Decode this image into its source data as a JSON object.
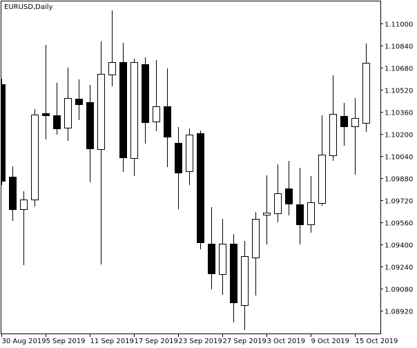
{
  "window": {
    "title": "EURUSD,Daily"
  },
  "colors": {
    "background": "#ffffff",
    "bull_body": "#ffffff",
    "bear_body": "#000000",
    "outline": "#000000"
  },
  "chart_data": {
    "type": "candlestick",
    "title": "EURUSD,Daily",
    "xlabel": "",
    "ylabel": "",
    "ylim": [
      1.08755,
      1.11155
    ],
    "grid": false,
    "y_axis_position": "right",
    "y_ticks": [
      "1.11000",
      "1.10840",
      "1.10680",
      "1.10520",
      "1.10360",
      "1.10200",
      "1.10040",
      "1.09880",
      "1.09720",
      "1.09560",
      "1.09400",
      "1.09240",
      "1.09080",
      "1.08920"
    ],
    "x_tick_labels": [
      {
        "date": "30 Aug 2019",
        "label": "30 Aug 2019"
      },
      {
        "date": "5 Sep 2019",
        "label": "5 Sep 2019"
      },
      {
        "date": "11 Sep 2019",
        "label": "11 Sep 2019"
      },
      {
        "date": "17 Sep 2019",
        "label": "17 Sep 2019"
      },
      {
        "date": "23 Sep 2019",
        "label": "23 Sep 2019"
      },
      {
        "date": "27 Sep 2019",
        "label": "27 Sep 2019"
      },
      {
        "date": "3 Oct 2019",
        "label": "3 Oct 2019"
      },
      {
        "date": "9 Oct 2019",
        "label": "9 Oct 2019"
      },
      {
        "date": "15 Oct 2019",
        "label": "15 Oct 2019"
      }
    ],
    "candles": [
      {
        "date": "30 Aug 2019",
        "open": 1.1056,
        "high": 1.106,
        "low": 1.0983,
        "close": 1.0986
      },
      {
        "date": "2 Sep 2019",
        "open": 1.0989,
        "high": 1.09965,
        "low": 1.0957,
        "close": 1.09655
      },
      {
        "date": "3 Sep 2019",
        "open": 1.09655,
        "high": 1.09785,
        "low": 1.0925,
        "close": 1.09725
      },
      {
        "date": "4 Sep 2019",
        "open": 1.09725,
        "high": 1.1038,
        "low": 1.09675,
        "close": 1.1034
      },
      {
        "date": "5 Sep 2019",
        "open": 1.1035,
        "high": 1.10845,
        "low": 1.1016,
        "close": 1.10335
      },
      {
        "date": "6 Sep 2019",
        "open": 1.10335,
        "high": 1.1057,
        "low": 1.10195,
        "close": 1.1024
      },
      {
        "date": "9 Sep 2019",
        "open": 1.10245,
        "high": 1.1068,
        "low": 1.1015,
        "close": 1.1046
      },
      {
        "date": "10 Sep 2019",
        "open": 1.10455,
        "high": 1.10595,
        "low": 1.103,
        "close": 1.10415
      },
      {
        "date": "11 Sep 2019",
        "open": 1.1043,
        "high": 1.10555,
        "low": 1.0985,
        "close": 1.10095
      },
      {
        "date": "12 Sep 2019",
        "open": 1.1009,
        "high": 1.1087,
        "low": 1.09255,
        "close": 1.10635
      },
      {
        "date": "13 Sep 2019",
        "open": 1.1063,
        "high": 1.11095,
        "low": 1.10545,
        "close": 1.1072
      },
      {
        "date": "16 Sep 2019",
        "open": 1.1072,
        "high": 1.1086,
        "low": 1.09925,
        "close": 1.1003
      },
      {
        "date": "17 Sep 2019",
        "open": 1.10025,
        "high": 1.10745,
        "low": 1.09895,
        "close": 1.1072
      },
      {
        "date": "18 Sep 2019",
        "open": 1.10705,
        "high": 1.10755,
        "low": 1.1013,
        "close": 1.10285
      },
      {
        "date": "19 Sep 2019",
        "open": 1.1029,
        "high": 1.10735,
        "low": 1.1022,
        "close": 1.104
      },
      {
        "date": "20 Sep 2019",
        "open": 1.104,
        "high": 1.10675,
        "low": 1.0996,
        "close": 1.1018
      },
      {
        "date": "23 Sep 2019",
        "open": 1.10135,
        "high": 1.1025,
        "low": 1.09655,
        "close": 1.0992
      },
      {
        "date": "24 Sep 2019",
        "open": 1.0993,
        "high": 1.1024,
        "low": 1.0983,
        "close": 1.10195
      },
      {
        "date": "25 Sep 2019",
        "open": 1.10205,
        "high": 1.10225,
        "low": 1.09365,
        "close": 1.09415
      },
      {
        "date": "26 Sep 2019",
        "open": 1.09405,
        "high": 1.0967,
        "low": 1.09075,
        "close": 1.0919
      },
      {
        "date": "27 Sep 2019",
        "open": 1.09185,
        "high": 1.09585,
        "low": 1.09035,
        "close": 1.09405
      },
      {
        "date": "30 Sep 2019",
        "open": 1.09405,
        "high": 1.09475,
        "low": 1.08835,
        "close": 1.0898
      },
      {
        "date": "1 Oct 2019",
        "open": 1.0896,
        "high": 1.09425,
        "low": 1.0878,
        "close": 1.09315
      },
      {
        "date": "2 Oct 2019",
        "open": 1.09305,
        "high": 1.09635,
        "low": 1.0903,
        "close": 1.09585
      },
      {
        "date": "3 Oct 2019",
        "open": 1.09615,
        "high": 1.099,
        "low": 1.094,
        "close": 1.0963
      },
      {
        "date": "4 Oct 2019",
        "open": 1.09625,
        "high": 1.0998,
        "low": 1.0956,
        "close": 1.0977
      },
      {
        "date": "7 Oct 2019",
        "open": 1.09805,
        "high": 1.10005,
        "low": 1.0961,
        "close": 1.09695
      },
      {
        "date": "8 Oct 2019",
        "open": 1.0969,
        "high": 1.09955,
        "low": 1.094,
        "close": 1.09545
      },
      {
        "date": "9 Oct 2019",
        "open": 1.09545,
        "high": 1.09895,
        "low": 1.09485,
        "close": 1.09705
      },
      {
        "date": "10 Oct 2019",
        "open": 1.097,
        "high": 1.10335,
        "low": 1.0968,
        "close": 1.1005
      },
      {
        "date": "11 Oct 2019",
        "open": 1.10045,
        "high": 1.10625,
        "low": 1.10005,
        "close": 1.10345
      },
      {
        "date": "14 Oct 2019",
        "open": 1.1033,
        "high": 1.10425,
        "low": 1.10115,
        "close": 1.10255
      },
      {
        "date": "15 Oct 2019",
        "open": 1.10255,
        "high": 1.1046,
        "low": 1.09905,
        "close": 1.10315
      },
      {
        "date": "16 Oct 2019",
        "open": 1.1028,
        "high": 1.10855,
        "low": 1.10215,
        "close": 1.10715
      }
    ]
  }
}
